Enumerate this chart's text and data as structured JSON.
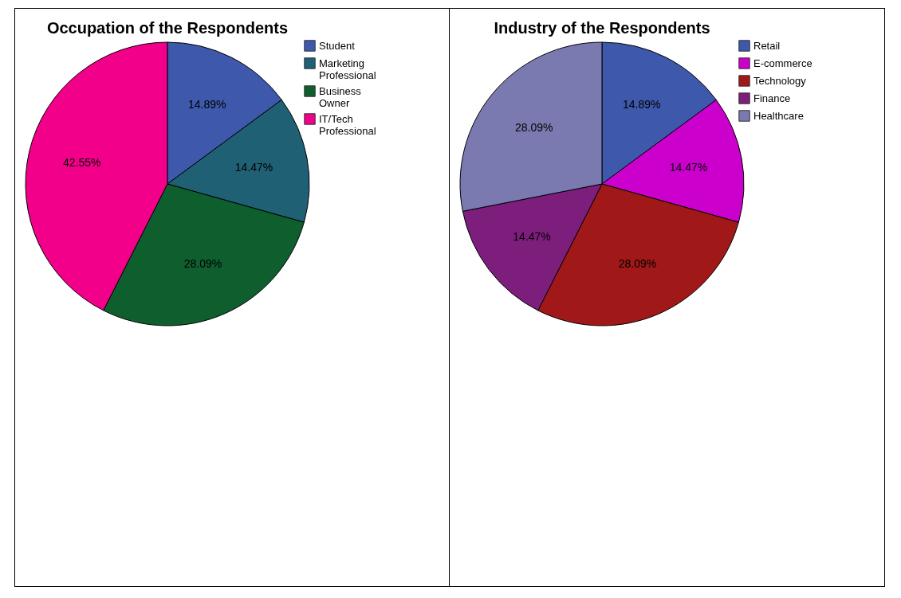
{
  "chart_data": [
    {
      "type": "pie",
      "title": "Occupation of the Respondents",
      "categories": [
        "Student",
        "Marketing Professional",
        "Business Owner",
        "IT/Tech Professional"
      ],
      "values": [
        14.89,
        14.47,
        28.09,
        42.55
      ],
      "colors": [
        "#3e58ac",
        "#1f6075",
        "#0f5e2e",
        "#f2008a"
      ],
      "value_labels": [
        "14.89%",
        "14.47%",
        "28.09%",
        "42.55%"
      ],
      "legend": "top right"
    },
    {
      "type": "pie",
      "title": "Industry of the Respondents",
      "categories": [
        "Retail",
        "E-commerce",
        "Technology",
        "Finance",
        "Healthcare"
      ],
      "values": [
        14.89,
        14.47,
        28.09,
        14.47,
        28.09
      ],
      "colors": [
        "#3e58ac",
        "#cc00cc",
        "#a01818",
        "#7d1e7d",
        "#7a7ab0"
      ],
      "value_labels": [
        "14.89%",
        "14.47%",
        "28.09%",
        "14.47%",
        "28.09%"
      ],
      "legend": "top right"
    }
  ]
}
